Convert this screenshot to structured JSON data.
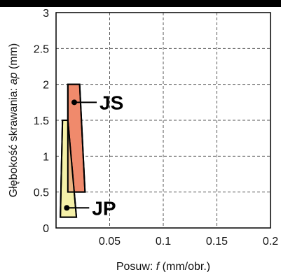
{
  "chart_data": {
    "type": "area",
    "xlabel_prefix": "Posuw: ",
    "xlabel_symbol": "f",
    "xlabel_unit": " (mm/obr.)",
    "ylabel_prefix": "Głębokość skrawania: ",
    "ylabel_symbol": "ap",
    "ylabel_unit": " (mm)",
    "xlim": [
      0,
      0.2
    ],
    "ylim": [
      0,
      3
    ],
    "x_ticks": [
      {
        "value": 0.05,
        "label": "0.05"
      },
      {
        "value": 0.1,
        "label": "0.1"
      },
      {
        "value": 0.15,
        "label": "0.15"
      },
      {
        "value": 0.2,
        "label": "0.2"
      }
    ],
    "y_ticks": [
      {
        "value": 0,
        "label": "0"
      },
      {
        "value": 0.5,
        "label": "0.5"
      },
      {
        "value": 1,
        "label": "1"
      },
      {
        "value": 1.5,
        "label": "1.5"
      },
      {
        "value": 2,
        "label": "2"
      },
      {
        "value": 2.5,
        "label": "2.5"
      },
      {
        "value": 3,
        "label": "3"
      }
    ],
    "grid": true,
    "regions": [
      {
        "name": "JS",
        "color": "#f08a6c",
        "polygon": [
          [
            0.011,
            2.0
          ],
          [
            0.022,
            2.0
          ],
          [
            0.027,
            0.5
          ],
          [
            0.011,
            0.5
          ]
        ],
        "label_point": [
          0.017,
          1.75
        ]
      },
      {
        "name": "JP",
        "color": "#f5f0a8",
        "polygon": [
          [
            0.006,
            1.5
          ],
          [
            0.011,
            1.5
          ],
          [
            0.019,
            0.15
          ],
          [
            0.004,
            0.15
          ]
        ],
        "label_point": [
          0.01,
          0.28
        ]
      }
    ],
    "overlap_color": "#e8b482"
  }
}
